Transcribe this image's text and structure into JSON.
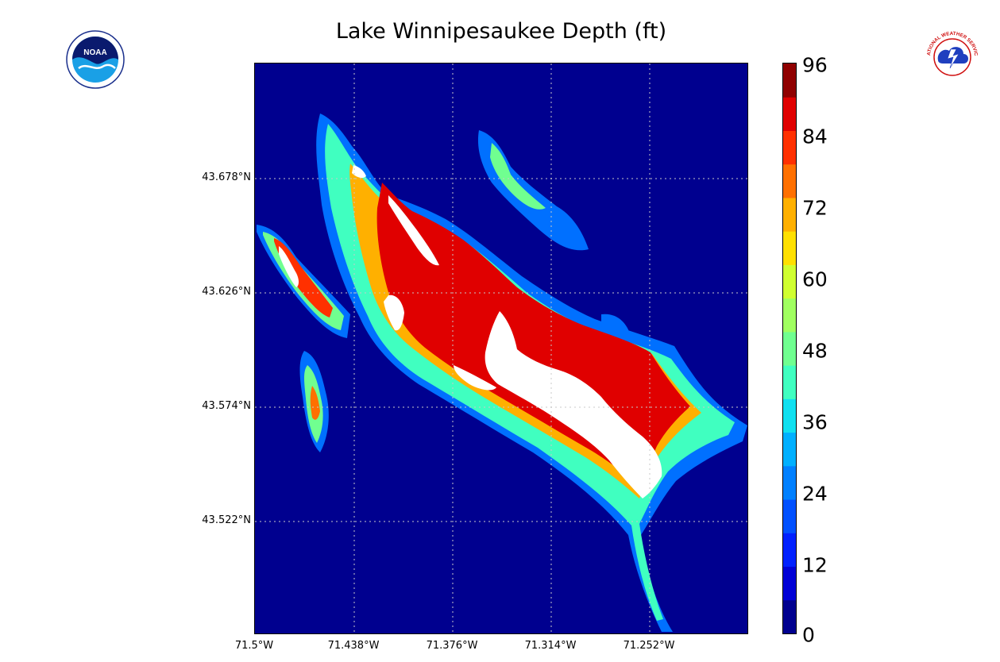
{
  "title": "Lake Winnipesaukee Depth (ft)",
  "logos": {
    "left": {
      "icon": "noaa-logo",
      "text": "NOAA"
    },
    "right": {
      "icon": "national-weather-service-logo",
      "text": "NATIONAL WEATHER SERVICE"
    }
  },
  "chart_data": {
    "type": "heatmap",
    "title": "Lake Winnipesaukee Depth (ft)",
    "x_axis": {
      "ticks": [
        "71.5°W",
        "71.438°W",
        "71.376°W",
        "71.314°W",
        "71.252°W"
      ],
      "values": [
        -71.5,
        -71.438,
        -71.376,
        -71.314,
        -71.252
      ],
      "range": [
        -71.5,
        -71.19
      ]
    },
    "y_axis": {
      "ticks": [
        "43.678°N",
        "43.626°N",
        "43.574°N",
        "43.522°N"
      ],
      "values": [
        43.678,
        43.626,
        43.574,
        43.522
      ],
      "range": [
        43.47,
        43.73
      ]
    },
    "grid": true,
    "colorbar": {
      "label_ticks": [
        "96",
        "84",
        "72",
        "60",
        "48",
        "36",
        "24",
        "12",
        "0"
      ],
      "levels": [
        0,
        6,
        12,
        18,
        24,
        30,
        36,
        42,
        48,
        54,
        60,
        66,
        72,
        78,
        84,
        90,
        96
      ],
      "colors": [
        "#00008f",
        "#0000d6",
        "#0020ff",
        "#0050ff",
        "#0080ff",
        "#00b0ff",
        "#10e0f0",
        "#40ffc0",
        "#70ff90",
        "#a0ff60",
        "#d0ff30",
        "#ffe000",
        "#ffb000",
        "#ff7000",
        "#ff3000",
        "#e00000",
        "#900000"
      ],
      "above_max_color": "#ffffff",
      "placement": "right"
    }
  },
  "colors": {
    "background": "#ffffff",
    "land": "#00008f",
    "deep": "#ffffff",
    "grid": "#c8c8c8"
  }
}
